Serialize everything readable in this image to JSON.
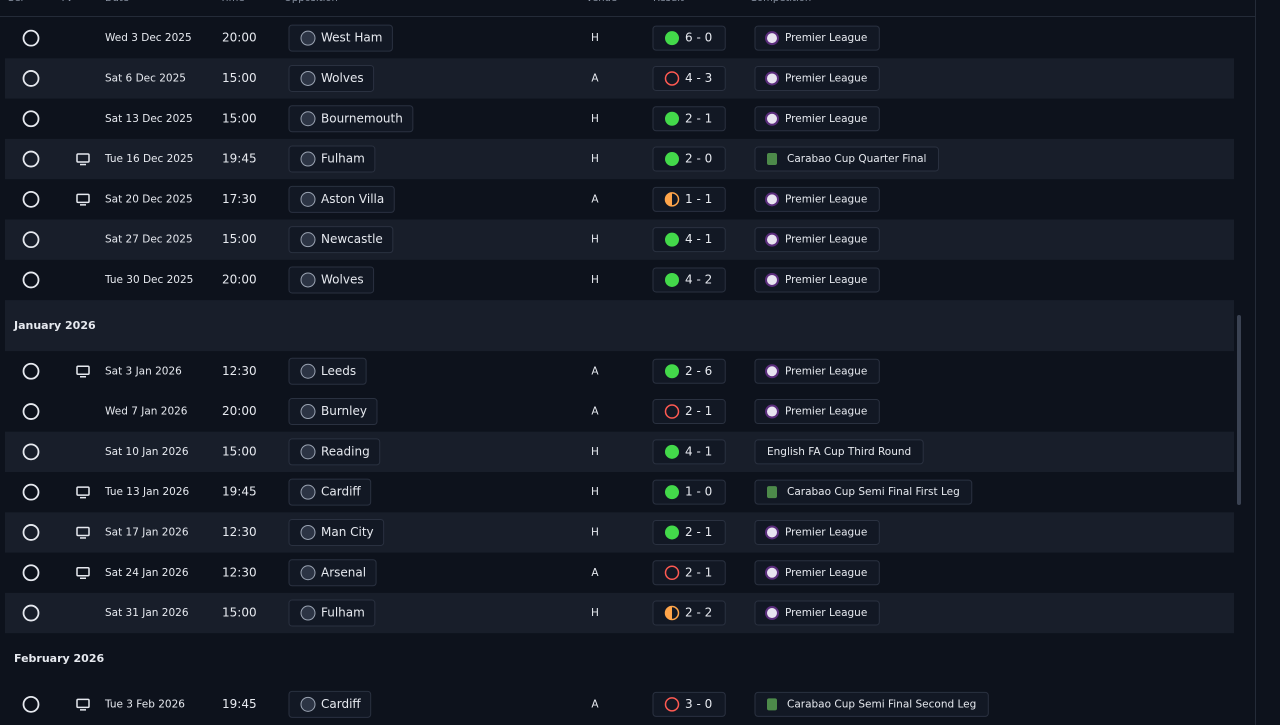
{
  "header": {
    "columns": [
      "Sel",
      "TV",
      "Date",
      "Time",
      "Opposition",
      "Venue",
      "Result",
      "Competition"
    ]
  },
  "sections": [
    {
      "fixtures": [
        {
          "date": "Wed 3 Dec 2025",
          "time": "20:00",
          "opponent": "West Ham",
          "venue": "H",
          "result": "6 - 0",
          "outcome": "win",
          "tv": false,
          "competition": "Premier League",
          "competition_icon": "league"
        },
        {
          "date": "Sat 6 Dec 2025",
          "time": "15:00",
          "opponent": "Wolves",
          "venue": "A",
          "result": "4 - 3",
          "outcome": "loss",
          "tv": false,
          "competition": "Premier League",
          "competition_icon": "league"
        },
        {
          "date": "Sat 13 Dec 2025",
          "time": "15:00",
          "opponent": "Bournemouth",
          "venue": "H",
          "result": "2 - 1",
          "outcome": "win",
          "tv": false,
          "competition": "Premier League",
          "competition_icon": "league"
        },
        {
          "date": "Tue 16 Dec 2025",
          "time": "19:45",
          "opponent": "Fulham",
          "venue": "H",
          "result": "2 - 0",
          "outcome": "win",
          "tv": true,
          "competition": "Carabao Cup Quarter Final",
          "competition_icon": "cup"
        },
        {
          "date": "Sat 20 Dec 2025",
          "time": "17:30",
          "opponent": "Aston Villa",
          "venue": "A",
          "result": "1 - 1",
          "outcome": "draw",
          "tv": true,
          "competition": "Premier League",
          "competition_icon": "league"
        },
        {
          "date": "Sat 27 Dec 2025",
          "time": "15:00",
          "opponent": "Newcastle",
          "venue": "H",
          "result": "4 - 1",
          "outcome": "win",
          "tv": false,
          "competition": "Premier League",
          "competition_icon": "league"
        },
        {
          "date": "Tue 30 Dec 2025",
          "time": "20:00",
          "opponent": "Wolves",
          "venue": "H",
          "result": "4 - 2",
          "outcome": "win",
          "tv": false,
          "competition": "Premier League",
          "competition_icon": "league"
        }
      ]
    },
    {
      "title": "January 2026",
      "fixtures": [
        {
          "date": "Sat 3 Jan 2026",
          "time": "12:30",
          "opponent": "Leeds",
          "venue": "A",
          "result": "2 - 6",
          "outcome": "win",
          "tv": true,
          "competition": "Premier League",
          "competition_icon": "league"
        },
        {
          "date": "Wed 7 Jan 2026",
          "time": "20:00",
          "opponent": "Burnley",
          "venue": "A",
          "result": "2 - 1",
          "outcome": "loss",
          "tv": false,
          "competition": "Premier League",
          "competition_icon": "league"
        },
        {
          "date": "Sat 10 Jan 2026",
          "time": "15:00",
          "opponent": "Reading",
          "venue": "H",
          "result": "4 - 1",
          "outcome": "win",
          "tv": false,
          "competition": "English FA Cup Third Round",
          "competition_icon": null
        },
        {
          "date": "Tue 13 Jan 2026",
          "time": "19:45",
          "opponent": "Cardiff",
          "venue": "H",
          "result": "1 - 0",
          "outcome": "win",
          "tv": true,
          "competition": "Carabao Cup Semi Final First Leg",
          "competition_icon": "cup"
        },
        {
          "date": "Sat 17 Jan 2026",
          "time": "12:30",
          "opponent": "Man City",
          "venue": "H",
          "result": "2 - 1",
          "outcome": "win",
          "tv": true,
          "competition": "Premier League",
          "competition_icon": "league"
        },
        {
          "date": "Sat 24 Jan 2026",
          "time": "12:30",
          "opponent": "Arsenal",
          "venue": "A",
          "result": "2 - 1",
          "outcome": "loss",
          "tv": true,
          "competition": "Premier League",
          "competition_icon": "league"
        },
        {
          "date": "Sat 31 Jan 2026",
          "time": "15:00",
          "opponent": "Fulham",
          "venue": "H",
          "result": "2 - 2",
          "outcome": "draw",
          "tv": false,
          "competition": "Premier League",
          "competition_icon": "league"
        }
      ]
    },
    {
      "title": "February 2026",
      "fixtures": [
        {
          "date": "Tue 3 Feb 2026",
          "time": "19:45",
          "opponent": "Cardiff",
          "venue": "A",
          "result": "3 - 0",
          "outcome": "loss",
          "tv": true,
          "competition": "Carabao Cup Semi Final Second Leg",
          "competition_icon": "cup"
        }
      ]
    }
  ]
}
